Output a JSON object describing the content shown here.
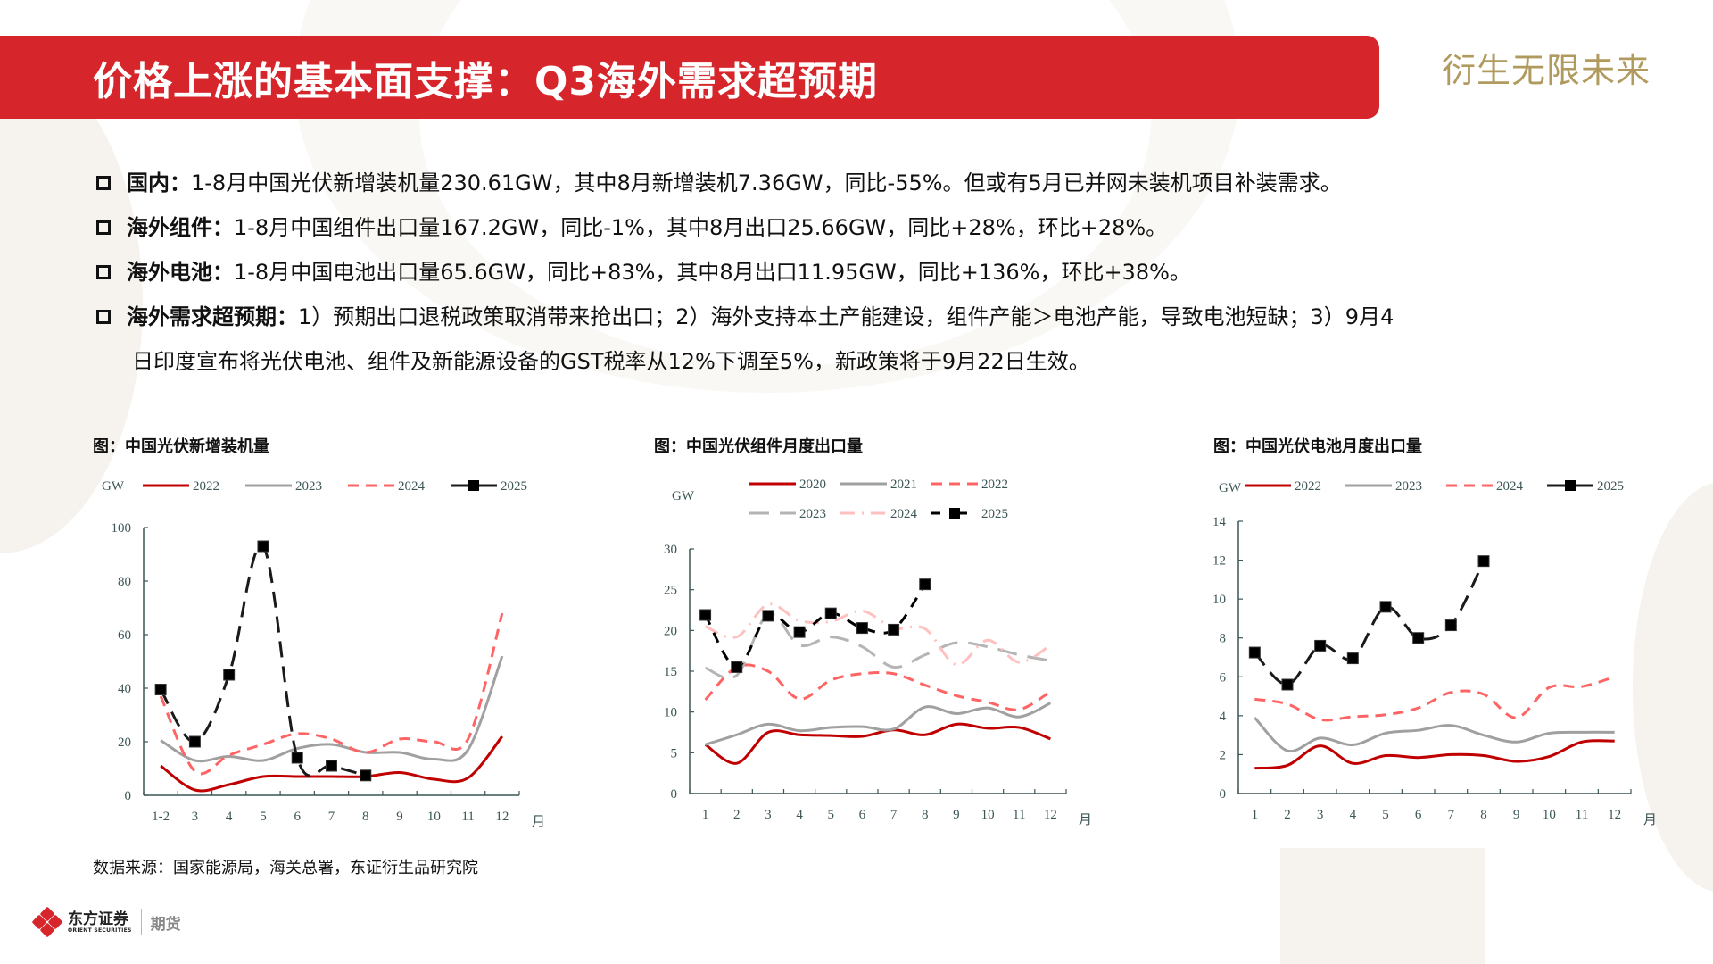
{
  "header": {
    "title": "价格上涨的基本面支撑：Q3海外需求超预期",
    "tagline": "衍生无限未来",
    "accent_color": "#d6262b",
    "tagline_color": "#b09a5e"
  },
  "bullets": [
    {
      "label": "国内：",
      "text": "1-8月中国光伏新增装机量230.61GW，其中8月新增装机7.36GW，同比-55%。但或有5月已并网未装机项目补装需求。"
    },
    {
      "label": "海外组件：",
      "text": "1-8月中国组件出口量167.2GW，同比-1%，其中8月出口25.66GW，同比+28%，环比+28%。"
    },
    {
      "label": "海外电池：",
      "text": "1-8月中国电池出口量65.6GW，同比+83%，其中8月出口11.95GW，同比+136%，环比+38%。"
    },
    {
      "label": "海外需求超预期：",
      "text": "1）预期出口退税政策取消带来抢出口；2）海外支持本土产能建设，组件产能＞电池产能，导致电池短缺；3）9月4",
      "continuation": "日印度宣布将光伏电池、组件及新能源设备的GST税率从12%下调至5%，新政策将于9月22日生效。"
    }
  ],
  "source": "数据来源：国家能源局，海关总署，东证衍生品研究院",
  "footer": {
    "logo_cn": "东方证券",
    "logo_en": "ORIENT SECURITIES",
    "division": "期货"
  },
  "chart_data": [
    {
      "type": "line",
      "title": "图：中国光伏新增装机量",
      "ylabel": "GW",
      "xlabel": "月",
      "ylim": [
        0,
        100
      ],
      "yticks": [
        0,
        20,
        40,
        60,
        80,
        100
      ],
      "categories": [
        "1-2",
        "3",
        "4",
        "5",
        "6",
        "7",
        "8",
        "9",
        "10",
        "11",
        "12"
      ],
      "legend_rows": [
        [
          "2022",
          "2023",
          "2024",
          "2025"
        ]
      ],
      "series": [
        {
          "name": "2022",
          "color": "#c00000",
          "style": "solid",
          "values": [
            11,
            2,
            4,
            7,
            7,
            7,
            7,
            8.5,
            6,
            6.5,
            22
          ]
        },
        {
          "name": "2023",
          "color": "#a0a0a0",
          "style": "solid",
          "values": [
            20.5,
            13,
            14.5,
            13,
            17.5,
            19,
            16,
            16,
            13.5,
            17,
            52
          ]
        },
        {
          "name": "2024",
          "color": "#ff6464",
          "style": "dash",
          "values": [
            37,
            9,
            15,
            19,
            23,
            21,
            16,
            21,
            20,
            21,
            68
          ]
        },
        {
          "name": "2025",
          "color": "#1a1a1a",
          "style": "longdash-marker",
          "values": [
            39.5,
            20,
            45,
            93,
            14,
            11,
            7.4
          ]
        }
      ]
    },
    {
      "type": "line",
      "title": "图：中国光伏组件月度出口量",
      "ylabel": "GW",
      "xlabel": "月",
      "ylim": [
        0,
        30
      ],
      "yticks": [
        0,
        5,
        10,
        15,
        20,
        25,
        30
      ],
      "categories": [
        "1",
        "2",
        "3",
        "4",
        "5",
        "6",
        "7",
        "8",
        "9",
        "10",
        "11",
        "12"
      ],
      "legend_rows": [
        [
          "2020",
          "2021",
          "2022"
        ],
        [
          "2023",
          "2024",
          "2025"
        ]
      ],
      "series": [
        {
          "name": "2020",
          "color": "#c00000",
          "style": "solid",
          "values": [
            6,
            3.7,
            7.5,
            7.2,
            7.1,
            7.0,
            7.8,
            7.2,
            8.5,
            8.0,
            8.1,
            6.7
          ]
        },
        {
          "name": "2021",
          "color": "#a0a0a0",
          "style": "solid",
          "values": [
            6,
            7.2,
            8.5,
            7.7,
            8.1,
            8.2,
            7.9,
            10.6,
            9.8,
            10.5,
            9.4,
            11.1
          ]
        },
        {
          "name": "2022",
          "color": "#ff6464",
          "style": "dash",
          "values": [
            11.5,
            15.5,
            15,
            11.6,
            13.9,
            14.7,
            14.7,
            13.3,
            12,
            11.2,
            10.3,
            12.5
          ]
        },
        {
          "name": "2023",
          "color": "#b4b4b4",
          "style": "longdash",
          "values": [
            15.4,
            14.5,
            22,
            18.2,
            19.2,
            18,
            15.5,
            17,
            18.5,
            18,
            17,
            16.3
          ]
        },
        {
          "name": "2024",
          "color": "#ffc0c0",
          "style": "dashdot",
          "values": [
            20.5,
            19.2,
            23.2,
            21.2,
            21.1,
            22.4,
            20.3,
            20.2,
            15.8,
            18.8,
            16.1,
            18.2
          ]
        },
        {
          "name": "2025",
          "color": "#000000",
          "style": "dash-marker",
          "values": [
            21.9,
            15.5,
            21.8,
            19.8,
            22.1,
            20.3,
            20.1,
            25.66
          ]
        }
      ]
    },
    {
      "type": "line",
      "title": "图：中国光伏电池月度出口量",
      "ylabel": "GW",
      "xlabel": "月",
      "ylim": [
        0,
        14
      ],
      "yticks": [
        0,
        2,
        4,
        6,
        8,
        10,
        12,
        14
      ],
      "categories": [
        "1",
        "2",
        "3",
        "4",
        "5",
        "6",
        "7",
        "8",
        "9",
        "10",
        "11",
        "12"
      ],
      "legend_rows": [
        [
          "2022",
          "2023",
          "2024",
          "2025"
        ]
      ],
      "series": [
        {
          "name": "2022",
          "color": "#c00000",
          "style": "solid",
          "values": [
            1.3,
            1.45,
            2.45,
            1.55,
            1.95,
            1.85,
            2.0,
            1.95,
            1.65,
            1.9,
            2.65,
            2.7
          ]
        },
        {
          "name": "2023",
          "color": "#a0a0a0",
          "style": "solid",
          "values": [
            3.9,
            2.2,
            2.85,
            2.5,
            3.1,
            3.25,
            3.5,
            3.0,
            2.65,
            3.1,
            3.15,
            3.15
          ]
        },
        {
          "name": "2024",
          "color": "#ff6464",
          "style": "dash",
          "values": [
            4.85,
            4.6,
            3.8,
            3.95,
            4.05,
            4.4,
            5.2,
            5.1,
            3.9,
            5.45,
            5.5,
            6.0
          ]
        },
        {
          "name": "2025",
          "color": "#1a1a1a",
          "style": "longdash-marker",
          "values": [
            7.25,
            5.6,
            7.6,
            6.95,
            9.6,
            8.0,
            8.65,
            11.95
          ]
        }
      ]
    }
  ]
}
